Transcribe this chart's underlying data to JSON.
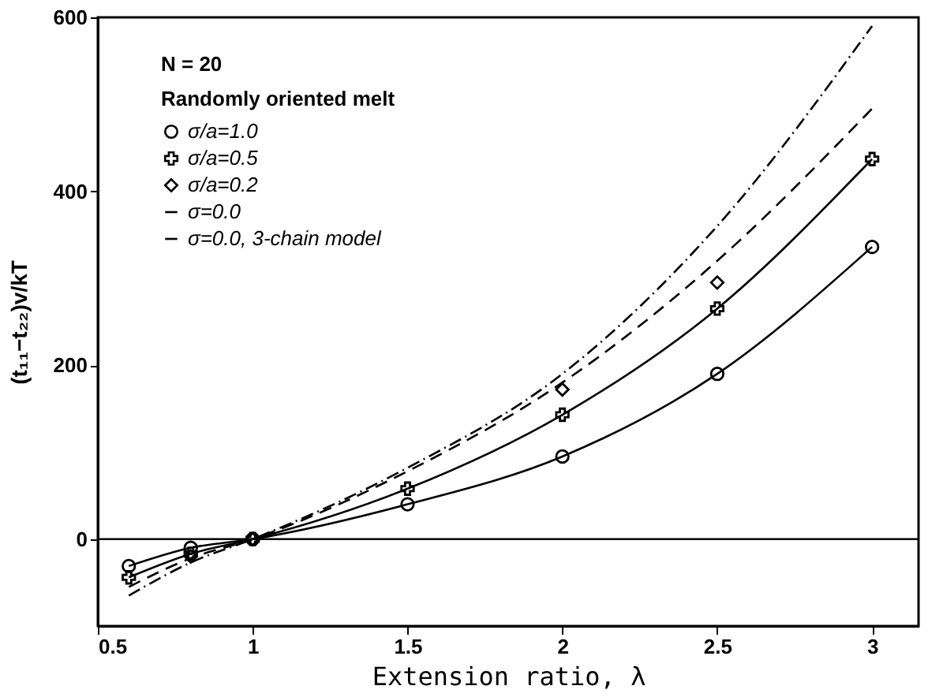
{
  "chart_data": {
    "type": "line",
    "xlabel": "Extension ratio, λ",
    "ylabel": "(t₁₁−t₂₂)v/kT",
    "xlim": [
      0.5,
      3.15
    ],
    "xticks": [
      0.5,
      1,
      1.5,
      2,
      2.5,
      3
    ],
    "ylim": [
      -100,
      600
    ],
    "yticks": [
      0,
      200,
      400,
      600
    ],
    "grid": false,
    "legend": "top left",
    "annotations": [
      "N = 20",
      "Randomly oriented melt"
    ],
    "ref_lines": [
      {
        "axis": "y",
        "value": 0,
        "color": "#000000"
      }
    ],
    "series": [
      {
        "name": "σ/a=1.0",
        "color": "#000000",
        "marker": "circle",
        "line_style": "solid",
        "x": [
          0.6,
          0.8,
          1,
          1.5,
          2,
          2.5,
          3
        ],
        "values": [
          -31,
          -10,
          0,
          40,
          95,
          190,
          336
        ]
      },
      {
        "name": "σ/a=0.5",
        "color": "#000000",
        "marker": "cross",
        "line_style": "solid",
        "x": [
          0.6,
          0.8,
          1,
          1.5,
          2,
          2.5,
          3
        ],
        "values": [
          -44,
          -17,
          0,
          58,
          143,
          265,
          437
        ]
      },
      {
        "name": "σ/a=0.2",
        "type": "scatter",
        "color": "#000000",
        "marker": "diamond",
        "x": [
          0.8,
          1,
          2,
          2.5
        ],
        "values": [
          -20,
          0,
          172,
          295
        ]
      },
      {
        "name": "σ=0.0",
        "color": "#000000",
        "marker": "none",
        "line_style": "dashed",
        "x": [
          0.6,
          0.8,
          1,
          1.5,
          2,
          2.5,
          3
        ],
        "values": [
          -55,
          -22,
          0,
          78,
          180,
          320,
          495
        ]
      },
      {
        "name": "σ=0.0, 3-chain model",
        "color": "#000000",
        "marker": "none",
        "line_style": "dotted",
        "x": [
          0.6,
          0.8,
          1,
          1.5,
          2,
          2.5,
          3
        ],
        "values": [
          -65,
          -27,
          0,
          82,
          190,
          360,
          590
        ]
      }
    ]
  }
}
